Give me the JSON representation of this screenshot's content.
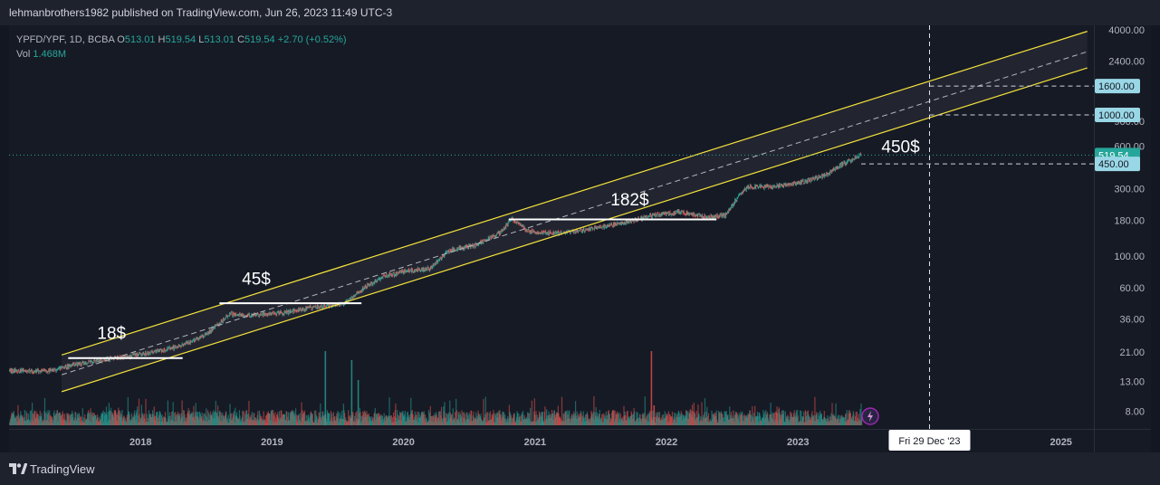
{
  "publisher_line": "lehmanbrothers1982 published on TradingView.com, Jun 26, 2023 11:49 UTC-3",
  "legend": {
    "symbol": "YPFD/YPF, 1D, BCBA",
    "o_label": "O",
    "o_value": "513.01",
    "h_label": "H",
    "h_value": "519.54",
    "l_label": "L",
    "l_value": "513.01",
    "c_label": "C",
    "c_value": "519.54",
    "change": "+2.70 (+0.52%)",
    "vol_label": "Vol",
    "vol_value": "1.468M"
  },
  "footer": {
    "brand": "TradingView"
  },
  "colors": {
    "background": "#131722",
    "channel": "#f5e33b",
    "up": "#26a69a",
    "down": "#ef5350",
    "last_price_tag": "#26a69a",
    "level_tag": "#9ad7e6"
  },
  "chart_data": {
    "type": "candlestick-with-volume",
    "title": "YPFD/YPF, 1D, BCBA",
    "y_scale": "log",
    "y_ticks": [
      "8.00",
      "13.00",
      "21.00",
      "36.00",
      "60.00",
      "100.00",
      "180.00",
      "300.00",
      "2400.00",
      "4000.00"
    ],
    "y_hidden_ticks": [
      "600.00",
      "900.00"
    ],
    "x_ticks": [
      "2018",
      "2019",
      "2020",
      "2021",
      "2022",
      "2023",
      "2025"
    ],
    "x_range": [
      2017.0,
      2025.25
    ],
    "y_range": [
      6.0,
      4300.0
    ],
    "price_path": [
      {
        "t": 2017.0,
        "p": 15.5
      },
      {
        "t": 2017.3,
        "p": 15.3
      },
      {
        "t": 2017.55,
        "p": 17.5
      },
      {
        "t": 2017.8,
        "p": 19.0
      },
      {
        "t": 2018.05,
        "p": 20.5
      },
      {
        "t": 2018.3,
        "p": 23.0
      },
      {
        "t": 2018.5,
        "p": 28.0
      },
      {
        "t": 2018.68,
        "p": 39.0
      },
      {
        "t": 2018.85,
        "p": 38.0
      },
      {
        "t": 2019.1,
        "p": 40.0
      },
      {
        "t": 2019.35,
        "p": 44.0
      },
      {
        "t": 2019.55,
        "p": 46.0
      },
      {
        "t": 2019.7,
        "p": 60.0
      },
      {
        "t": 2019.85,
        "p": 72.0
      },
      {
        "t": 2020.0,
        "p": 78.0
      },
      {
        "t": 2020.2,
        "p": 82.0
      },
      {
        "t": 2020.35,
        "p": 110.0
      },
      {
        "t": 2020.55,
        "p": 120.0
      },
      {
        "t": 2020.75,
        "p": 150.0
      },
      {
        "t": 2020.82,
        "p": 185.0
      },
      {
        "t": 2020.95,
        "p": 150.0
      },
      {
        "t": 2021.2,
        "p": 145.0
      },
      {
        "t": 2021.5,
        "p": 160.0
      },
      {
        "t": 2021.7,
        "p": 175.0
      },
      {
        "t": 2021.9,
        "p": 195.0
      },
      {
        "t": 2022.1,
        "p": 205.0
      },
      {
        "t": 2022.3,
        "p": 190.0
      },
      {
        "t": 2022.45,
        "p": 195.0
      },
      {
        "t": 2022.55,
        "p": 270.0
      },
      {
        "t": 2022.62,
        "p": 310.0
      },
      {
        "t": 2022.8,
        "p": 310.0
      },
      {
        "t": 2023.0,
        "p": 330.0
      },
      {
        "t": 2023.2,
        "p": 370.0
      },
      {
        "t": 2023.32,
        "p": 440.0
      },
      {
        "t": 2023.48,
        "p": 519.54
      }
    ],
    "volume_spikes": [
      {
        "t": 2019.4,
        "v": 0.82
      },
      {
        "t": 2019.6,
        "v": 0.72
      },
      {
        "t": 2019.65,
        "v": 0.5
      },
      {
        "t": 2021.05,
        "v": 0.15
      },
      {
        "t": 2021.88,
        "v": 0.82
      },
      {
        "t": 2021.9,
        "v": 0.22
      }
    ],
    "channel": {
      "upper": {
        "t1": 2017.4,
        "p1": 20.0,
        "t2": 2025.2,
        "p2": 3900.0
      },
      "mid": {
        "t1": 2017.4,
        "p1": 14.5,
        "t2": 2025.2,
        "p2": 2800.0
      },
      "lower": {
        "t1": 2017.4,
        "p1": 11.0,
        "t2": 2025.2,
        "p2": 2150.0
      },
      "color": "#f5e33b"
    },
    "horizontal_levels": [
      {
        "label": "18$",
        "price": 19.0,
        "t1": 2017.45,
        "t2": 2018.32,
        "label_t": 2017.78,
        "label_price": 26.0
      },
      {
        "label": "45$",
        "price": 46.5,
        "t1": 2018.6,
        "t2": 2019.68,
        "label_t": 2018.88,
        "label_price": 63.0
      },
      {
        "label": "182$",
        "price": 182.0,
        "t1": 2020.8,
        "t2": 2022.38,
        "label_t": 2021.72,
        "label_price": 228.0
      },
      {
        "label": "450$",
        "price": 450.0,
        "t1": 2023.48,
        "t2": 2025.25,
        "label_t": 2023.78,
        "label_price": 540.0
      }
    ],
    "price_tags": [
      {
        "label": "1600.00",
        "price": 1600.0
      },
      {
        "label": "1000.00",
        "price": 1000.0
      },
      {
        "label": "519.54",
        "price": 519.54,
        "last": true
      },
      {
        "label": "450.00",
        "price": 450.0
      }
    ],
    "crosshair": {
      "t": 2024.0,
      "label": "Fri 29 Dec '23"
    }
  }
}
